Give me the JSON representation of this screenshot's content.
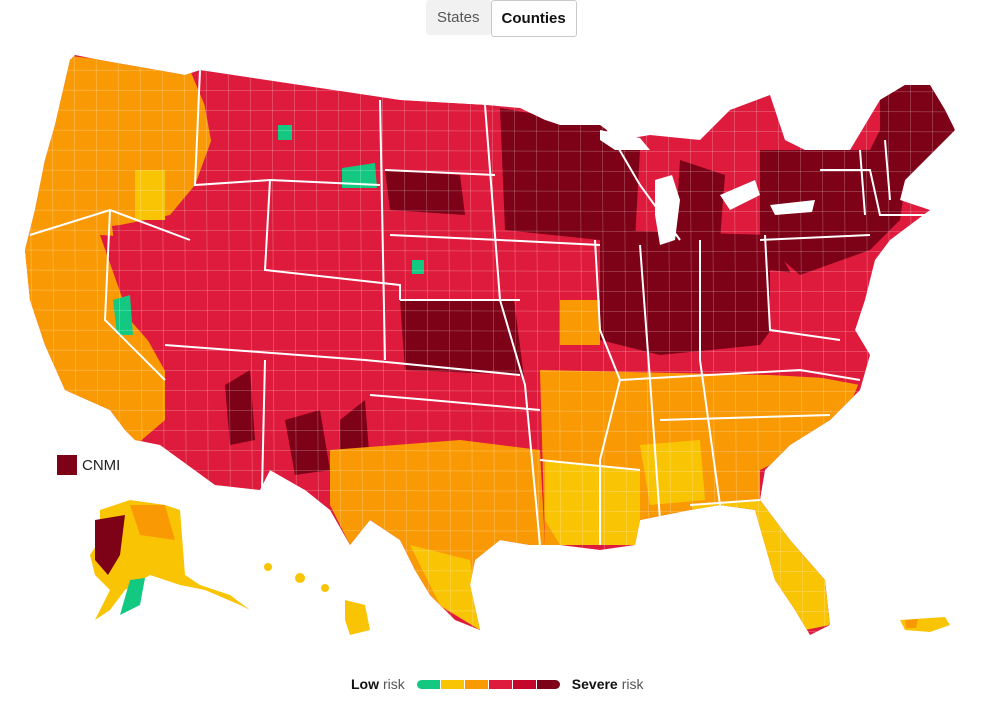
{
  "toggle": {
    "states_label": "States",
    "counties_label": "Counties",
    "selected": "Counties"
  },
  "colors": {
    "low": "#13c982",
    "moderate": "#f9c404",
    "substantial": "#f99a05",
    "high": "#de1b3c",
    "very_high": "#c4062b",
    "severe": "#7d0117",
    "border": "#ffffff"
  },
  "cnmi": {
    "label": "CNMI",
    "level": "severe"
  },
  "legend": {
    "low_bold": "Low",
    "low_rest": "risk",
    "severe_bold": "Severe",
    "severe_rest": "risk",
    "levels": [
      "low",
      "moderate",
      "substantial",
      "high",
      "very_high",
      "severe"
    ]
  },
  "regions": [
    {
      "name": "pacific-northwest",
      "level": "substantial"
    },
    {
      "name": "california",
      "level": "substantial"
    },
    {
      "name": "great-basin",
      "level": "high"
    },
    {
      "name": "southwest",
      "level": "high"
    },
    {
      "name": "four-corners",
      "level": "severe"
    },
    {
      "name": "rockies",
      "level": "high"
    },
    {
      "name": "northern-plains",
      "level": "high"
    },
    {
      "name": "central-plains",
      "level": "severe"
    },
    {
      "name": "texas",
      "level": "substantial"
    },
    {
      "name": "upper-midwest",
      "level": "severe"
    },
    {
      "name": "midwest",
      "level": "high"
    },
    {
      "name": "ohio-valley",
      "level": "severe"
    },
    {
      "name": "southeast",
      "level": "substantial"
    },
    {
      "name": "gulf-coast",
      "level": "moderate"
    },
    {
      "name": "florida",
      "level": "moderate"
    },
    {
      "name": "mid-atlantic",
      "level": "high"
    },
    {
      "name": "northeast",
      "level": "severe"
    },
    {
      "name": "alaska",
      "level": "moderate"
    },
    {
      "name": "hawaii",
      "level": "moderate"
    },
    {
      "name": "puerto-rico",
      "level": "moderate"
    }
  ]
}
